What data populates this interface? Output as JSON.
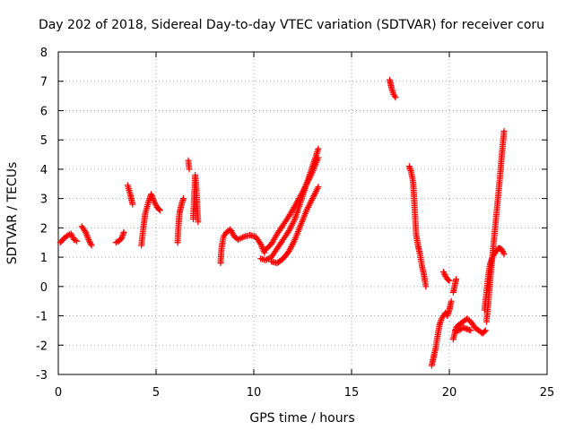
{
  "chart_data": {
    "type": "scatter",
    "title": "Day 202 of 2018, Sidereal Day-to-day VTEC variation (SDTVAR) for receiver coru",
    "xlabel": "GPS time / hours",
    "ylabel": "SDTVAR / TECUs",
    "xlim": [
      0,
      25
    ],
    "ylim": [
      -3,
      8
    ],
    "xticks": [
      "0",
      "5",
      "10",
      "15",
      "20",
      "25"
    ],
    "yticks": [
      "-3",
      "-2",
      "-1",
      "0",
      "1",
      "2",
      "3",
      "4",
      "5",
      "6",
      "7",
      "8"
    ],
    "grid": true,
    "marker": "+",
    "color": "#ff0000",
    "segments": [
      [
        [
          0.1,
          1.5
        ],
        [
          0.3,
          1.65
        ],
        [
          0.5,
          1.75
        ],
        [
          0.65,
          1.8
        ],
        [
          0.8,
          1.6
        ],
        [
          0.95,
          1.55
        ]
      ],
      [
        [
          1.2,
          2.05
        ],
        [
          1.4,
          1.85
        ],
        [
          1.55,
          1.6
        ],
        [
          1.7,
          1.4
        ]
      ],
      [
        [
          2.95,
          1.5
        ],
        [
          3.1,
          1.55
        ],
        [
          3.25,
          1.65
        ],
        [
          3.35,
          1.85
        ]
      ],
      [
        [
          3.55,
          3.45
        ],
        [
          3.7,
          3.1
        ],
        [
          3.8,
          2.8
        ]
      ],
      [
        [
          4.25,
          1.4
        ],
        [
          4.35,
          2.0
        ],
        [
          4.45,
          2.5
        ],
        [
          4.6,
          2.85
        ],
        [
          4.75,
          3.15
        ],
        [
          4.9,
          2.9
        ],
        [
          5.05,
          2.7
        ],
        [
          5.2,
          2.6
        ]
      ],
      [
        [
          6.1,
          1.5
        ],
        [
          6.15,
          2.1
        ],
        [
          6.2,
          2.5
        ],
        [
          6.3,
          2.8
        ],
        [
          6.4,
          3.0
        ]
      ],
      [
        [
          6.65,
          4.3
        ],
        [
          6.7,
          4.0
        ]
      ],
      [
        [
          6.9,
          2.3
        ],
        [
          7.0,
          3.8
        ],
        [
          7.05,
          3.5
        ],
        [
          7.1,
          2.8
        ],
        [
          7.15,
          2.2
        ]
      ],
      [
        [
          8.3,
          0.8
        ],
        [
          8.35,
          1.3
        ],
        [
          8.45,
          1.7
        ],
        [
          8.6,
          1.85
        ],
        [
          8.8,
          1.95
        ],
        [
          9.0,
          1.7
        ],
        [
          9.2,
          1.6
        ],
        [
          9.5,
          1.7
        ],
        [
          9.8,
          1.75
        ],
        [
          10.1,
          1.7
        ],
        [
          10.35,
          1.45
        ],
        [
          10.55,
          1.15
        ]
      ],
      [
        [
          10.35,
          0.95
        ],
        [
          10.6,
          0.9
        ],
        [
          10.9,
          1.0
        ],
        [
          11.2,
          1.3
        ],
        [
          11.5,
          1.6
        ],
        [
          11.8,
          1.9
        ],
        [
          12.1,
          2.3
        ],
        [
          12.4,
          2.9
        ],
        [
          12.7,
          3.5
        ],
        [
          13.0,
          4.1
        ],
        [
          13.3,
          4.7
        ]
      ],
      [
        [
          10.6,
          1.25
        ],
        [
          10.9,
          1.45
        ],
        [
          11.2,
          1.8
        ],
        [
          11.5,
          2.1
        ],
        [
          11.8,
          2.4
        ],
        [
          12.1,
          2.75
        ],
        [
          12.4,
          3.1
        ],
        [
          12.7,
          3.5
        ],
        [
          13.0,
          3.9
        ],
        [
          13.3,
          4.4
        ]
      ],
      [
        [
          10.9,
          0.85
        ],
        [
          11.2,
          0.8
        ],
        [
          11.5,
          0.95
        ],
        [
          11.8,
          1.2
        ],
        [
          12.1,
          1.6
        ],
        [
          12.4,
          2.1
        ],
        [
          12.7,
          2.6
        ],
        [
          13.0,
          3.0
        ],
        [
          13.3,
          3.4
        ]
      ],
      [
        [
          16.95,
          7.05
        ],
        [
          17.05,
          6.75
        ],
        [
          17.15,
          6.55
        ],
        [
          17.25,
          6.45
        ]
      ],
      [
        [
          17.95,
          4.1
        ],
        [
          18.05,
          3.9
        ],
        [
          18.15,
          3.55
        ],
        [
          18.2,
          3.0
        ],
        [
          18.25,
          2.4
        ],
        [
          18.3,
          1.8
        ],
        [
          18.4,
          1.4
        ],
        [
          18.5,
          1.1
        ],
        [
          18.6,
          0.7
        ],
        [
          18.7,
          0.4
        ],
        [
          18.8,
          0.0
        ]
      ],
      [
        [
          19.1,
          -2.7
        ],
        [
          19.2,
          -2.4
        ],
        [
          19.3,
          -2.1
        ],
        [
          19.4,
          -1.7
        ],
        [
          19.5,
          -1.3
        ],
        [
          19.6,
          -1.1
        ],
        [
          19.7,
          -1.0
        ],
        [
          19.8,
          -0.9
        ],
        [
          19.9,
          -1.0
        ],
        [
          20.0,
          -0.8
        ],
        [
          20.1,
          -0.5
        ]
      ],
      [
        [
          19.7,
          0.5
        ],
        [
          19.8,
          0.35
        ],
        [
          19.9,
          0.25
        ],
        [
          20.0,
          0.2
        ]
      ],
      [
        [
          20.2,
          -0.2
        ],
        [
          20.3,
          0.1
        ],
        [
          20.35,
          0.25
        ]
      ],
      [
        [
          20.2,
          -1.8
        ],
        [
          20.35,
          -1.4
        ],
        [
          20.5,
          -1.3
        ],
        [
          20.7,
          -1.2
        ],
        [
          20.9,
          -1.1
        ],
        [
          21.1,
          -1.2
        ],
        [
          21.3,
          -1.4
        ],
        [
          21.5,
          -1.5
        ],
        [
          21.7,
          -1.6
        ],
        [
          21.85,
          -1.5
        ]
      ],
      [
        [
          20.3,
          -1.5
        ],
        [
          20.5,
          -1.5
        ],
        [
          20.7,
          -1.4
        ],
        [
          20.9,
          -1.45
        ],
        [
          21.1,
          -1.5
        ]
      ],
      [
        [
          21.8,
          -0.8
        ],
        [
          21.9,
          -0.2
        ],
        [
          22.0,
          0.4
        ],
        [
          22.1,
          0.8
        ],
        [
          22.2,
          1.0
        ],
        [
          22.3,
          1.1
        ],
        [
          22.4,
          1.2
        ],
        [
          22.5,
          1.3
        ],
        [
          22.6,
          1.3
        ],
        [
          22.7,
          1.25
        ],
        [
          22.8,
          1.1
        ]
      ],
      [
        [
          21.9,
          -1.2
        ],
        [
          22.0,
          -0.5
        ],
        [
          22.1,
          0.3
        ],
        [
          22.2,
          1.0
        ],
        [
          22.3,
          1.7
        ],
        [
          22.4,
          2.4
        ],
        [
          22.5,
          3.1
        ],
        [
          22.6,
          3.8
        ],
        [
          22.7,
          4.6
        ],
        [
          22.8,
          5.3
        ]
      ]
    ]
  }
}
